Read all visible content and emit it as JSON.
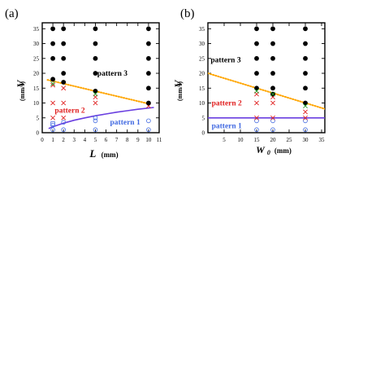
{
  "chart_data": [
    {
      "type": "scatter",
      "panel_label": "(a)",
      "xlabel": "L",
      "xlabel_unit": "(mm)",
      "ylabel": "V",
      "ylabel_unit": "(mm/s)",
      "xlim": [
        0,
        11
      ],
      "ylim": [
        0,
        37
      ],
      "xticks": [
        0,
        1,
        2,
        3,
        4,
        5,
        6,
        7,
        8,
        9,
        10,
        11
      ],
      "yticks": [
        0,
        5,
        10,
        15,
        20,
        25,
        30,
        35
      ],
      "series": [
        {
          "name": "pattern 1",
          "marker": "circle-open",
          "color": "#4169e1",
          "points": [
            [
              1,
              1
            ],
            [
              1,
              2.5
            ],
            [
              2,
              1
            ],
            [
              2,
              3.5
            ],
            [
              5,
              1
            ],
            [
              5,
              4
            ],
            [
              5,
              5
            ],
            [
              10,
              1
            ],
            [
              10,
              4
            ]
          ]
        },
        {
          "name": "pattern 2",
          "marker": "cross",
          "color": "#e02020",
          "points": [
            [
              1,
              5
            ],
            [
              1,
              10
            ],
            [
              1,
              16
            ],
            [
              2,
              5
            ],
            [
              2,
              10
            ],
            [
              2,
              15
            ],
            [
              5,
              10
            ],
            [
              5,
              12
            ],
            [
              10,
              9
            ]
          ]
        },
        {
          "name": "pattern 3",
          "marker": "circle-filled",
          "color": "#000000",
          "points": [
            [
              1,
              18
            ],
            [
              1,
              25
            ],
            [
              1,
              30
            ],
            [
              1,
              35
            ],
            [
              2,
              17
            ],
            [
              2,
              20
            ],
            [
              2,
              25
            ],
            [
              2,
              30
            ],
            [
              2,
              35
            ],
            [
              5,
              14
            ],
            [
              5,
              20
            ],
            [
              5,
              25
            ],
            [
              5,
              30
            ],
            [
              5,
              35
            ],
            [
              10,
              10
            ],
            [
              10,
              15
            ],
            [
              10,
              20
            ],
            [
              10,
              25
            ],
            [
              10,
              30
            ],
            [
              10,
              35
            ]
          ]
        }
      ],
      "extra_markers": [
        {
          "marker": "square-open",
          "color": "#4169e1",
          "points": [
            [
              1,
              3
            ]
          ]
        },
        {
          "marker": "cross",
          "color": "#2a9d2a",
          "points": [
            [
              1,
              16.5
            ],
            [
              5,
              13
            ]
          ]
        }
      ],
      "boundaries": [
        {
          "style": "dotted",
          "color": "#ffa500",
          "points": [
            [
              0.5,
              17.8
            ],
            [
              10.2,
              9.6
            ]
          ]
        },
        {
          "style": "solid",
          "color": "#6a3fe0",
          "points": [
            [
              0.6,
              1.4
            ],
            [
              1,
              2.0
            ],
            [
              2,
              3.2
            ],
            [
              3,
              4.2
            ],
            [
              4,
              5.0
            ],
            [
              5,
              5.7
            ],
            [
              6,
              6.3
            ],
            [
              7,
              6.9
            ],
            [
              8,
              7.4
            ],
            [
              9,
              7.9
            ],
            [
              10.5,
              8.5
            ]
          ]
        }
      ],
      "annotations": [
        {
          "text": "pattern 3",
          "color": "#000000",
          "x": 6.6,
          "y": 20
        },
        {
          "text": "pattern 2",
          "color": "#e02020",
          "x": 2.6,
          "y": 7.5
        },
        {
          "text": "pattern 1",
          "color": "#4169e1",
          "x": 7.8,
          "y": 3.5
        }
      ]
    },
    {
      "type": "scatter",
      "panel_label": "(b)",
      "xlabel": "W",
      "xlabel_sub": "0",
      "xlabel_unit": "(mm)",
      "ylabel": "V",
      "ylabel_unit": "(mm/s)",
      "xlim": [
        0,
        36
      ],
      "ylim": [
        0,
        37
      ],
      "xticks": [
        5,
        10,
        15,
        20,
        25,
        30,
        35
      ],
      "yticks": [
        0,
        5,
        10,
        15,
        20,
        25,
        30,
        35
      ],
      "series": [
        {
          "name": "pattern 1",
          "marker": "circle-open",
          "color": "#4169e1",
          "points": [
            [
              15,
              1
            ],
            [
              15,
              4
            ],
            [
              20,
              1
            ],
            [
              20,
              4
            ],
            [
              30,
              1
            ],
            [
              30,
              4
            ]
          ]
        },
        {
          "name": "pattern 2",
          "marker": "cross",
          "color": "#e02020",
          "points": [
            [
              15,
              5
            ],
            [
              15,
              10
            ],
            [
              15,
              13
            ],
            [
              20,
              5
            ],
            [
              20,
              10
            ],
            [
              20,
              12
            ],
            [
              30,
              5
            ],
            [
              30,
              7
            ]
          ]
        },
        {
          "name": "pattern 3",
          "marker": "circle-filled",
          "color": "#000000",
          "points": [
            [
              15,
              15
            ],
            [
              15,
              20
            ],
            [
              15,
              25
            ],
            [
              15,
              30
            ],
            [
              15,
              35
            ],
            [
              20,
              13
            ],
            [
              20,
              15
            ],
            [
              20,
              20
            ],
            [
              20,
              25
            ],
            [
              20,
              30
            ],
            [
              20,
              35
            ],
            [
              30,
              10
            ],
            [
              30,
              15
            ],
            [
              30,
              20
            ],
            [
              30,
              25
            ],
            [
              30,
              30
            ],
            [
              30,
              35
            ]
          ]
        }
      ],
      "extra_markers": [
        {
          "marker": "cross",
          "color": "#2a9d2a",
          "points": [
            [
              15,
              14
            ],
            [
              20,
              13
            ],
            [
              30,
              9
            ]
          ]
        }
      ],
      "boundaries": [
        {
          "style": "dotted",
          "color": "#ffa500",
          "points": [
            [
              0,
              20
            ],
            [
              36,
              8
            ]
          ]
        },
        {
          "style": "solid",
          "color": "#6a3fe0",
          "points": [
            [
              0,
              5
            ],
            [
              36,
              5
            ]
          ]
        }
      ],
      "annotations": [
        {
          "text": "pattern 3",
          "color": "#000000",
          "x": 5.5,
          "y": 24.5
        },
        {
          "text": "pattern 2",
          "color": "#e02020",
          "x": 5.8,
          "y": 10
        },
        {
          "text": "pattern 1",
          "color": "#4169e1",
          "x": 5.8,
          "y": 2.3
        }
      ]
    }
  ]
}
